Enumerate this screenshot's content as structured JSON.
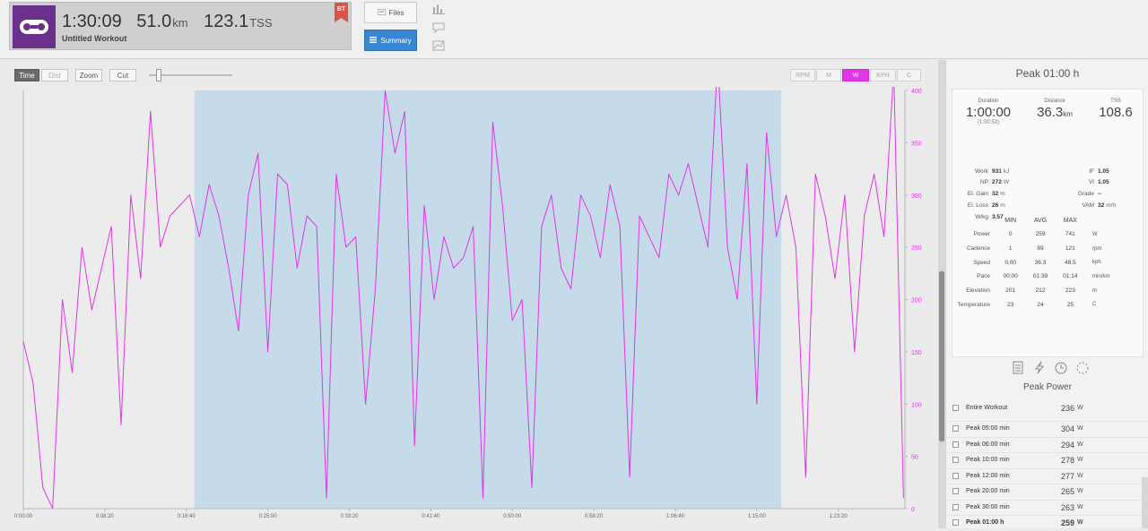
{
  "header": {
    "duration": "1:30:09",
    "distance": "51.0",
    "distance_unit": "km",
    "tss": "123.1",
    "tss_unit": "TSS",
    "title": "Untitled Workout",
    "badge": "BT",
    "files_label": "Files",
    "summary_label": "Summary"
  },
  "controls": {
    "time": "Time",
    "dist": "Dist",
    "zoom": "Zoom",
    "cut": "Cut",
    "metrics": [
      "RPM",
      "M",
      "W",
      "KPH",
      "C"
    ],
    "active_metric": "W"
  },
  "colors": {
    "accent": "#e135e8",
    "selection": "#c6dbea",
    "summary_button": "#3a86d0",
    "sport_icon": "#6b2f8c"
  },
  "chart_data": {
    "type": "line",
    "series_color": "#e135e8",
    "x_ticks": [
      "0:00:00",
      "0:08:20",
      "0:16:40",
      "0:25:00",
      "0:33:20",
      "0:41:40",
      "0:50:00",
      "0:58:20",
      "1:06:40",
      "1:15:00",
      "1:23:20"
    ],
    "y_ticks": [
      "0",
      "50",
      "100",
      "150",
      "200",
      "250",
      "300",
      "350",
      "400"
    ],
    "xlim_seconds": [
      0,
      5409
    ],
    "ylim": [
      0,
      400
    ],
    "selection_seconds": [
      1050,
      4650
    ],
    "series": [
      {
        "x_seconds": [
          0,
          60,
          120,
          180,
          240,
          300,
          360,
          420,
          480,
          540,
          600,
          660,
          720,
          780,
          840,
          900,
          960,
          1020,
          1080,
          1140,
          1200,
          1260,
          1320,
          1380,
          1440,
          1500,
          1560,
          1620,
          1680,
          1740,
          1800,
          1860,
          1920,
          1980,
          2040,
          2100,
          2160,
          2220,
          2280,
          2340,
          2400,
          2460,
          2520,
          2580,
          2640,
          2700,
          2760,
          2820,
          2880,
          2940,
          3000,
          3060,
          3120,
          3180,
          3240,
          3300,
          3360,
          3420,
          3480,
          3540,
          3600,
          3660,
          3720,
          3780,
          3840,
          3900,
          3960,
          4020,
          4080,
          4140,
          4200,
          4260,
          4320,
          4380,
          4440,
          4500,
          4560,
          4620,
          4680,
          4740,
          4800,
          4860,
          4920,
          4980,
          5040,
          5100,
          5160,
          5220,
          5280,
          5340,
          5400
        ],
        "values": [
          160,
          120,
          20,
          0,
          200,
          130,
          250,
          190,
          230,
          270,
          80,
          300,
          220,
          380,
          250,
          280,
          290,
          300,
          260,
          310,
          280,
          230,
          170,
          300,
          340,
          150,
          320,
          310,
          230,
          280,
          270,
          10,
          320,
          250,
          260,
          100,
          210,
          400,
          340,
          380,
          60,
          290,
          200,
          260,
          230,
          240,
          270,
          10,
          370,
          290,
          180,
          200,
          20,
          270,
          300,
          230,
          210,
          300,
          280,
          240,
          310,
          270,
          30,
          280,
          260,
          240,
          320,
          300,
          330,
          290,
          250,
          430,
          250,
          200,
          330,
          100,
          360,
          260,
          300,
          250,
          30,
          320,
          280,
          220,
          300,
          150,
          280,
          320,
          260,
          420,
          10
        ]
      }
    ]
  },
  "summary": {
    "title": "Peak 01:00 h",
    "duration_label": "Duration",
    "duration": "1:00:00",
    "duration_sub": "(1:00:53)",
    "distance_label": "Distance",
    "distance": "36.3",
    "distance_unit": "km",
    "tss_label": "TSS",
    "tss": "108.6",
    "work_label": "Work",
    "work": "931",
    "work_unit": "kJ",
    "np_label": "NP",
    "np": "272",
    "np_unit": "W",
    "el_gain_label": "El. Gain",
    "el_gain": "32",
    "el_gain_unit": "m",
    "el_loss_label": "El. Loss",
    "el_loss": "26",
    "el_loss_unit": "m",
    "wkg_label": "W/kg",
    "wkg": "3.57",
    "if_label": "IF",
    "if": "1.05",
    "vi_label": "VI",
    "vi": "1.05",
    "grade_label": "Grade",
    "grade": "--",
    "vam_label": "VAM",
    "vam": "32",
    "vam_unit": "m/h",
    "table_headers": [
      "MIN",
      "AVG",
      "MAX"
    ],
    "rows": [
      {
        "label": "Power",
        "min": "0",
        "avg": "259",
        "max": "741",
        "unit": "W"
      },
      {
        "label": "Cadence",
        "min": "1",
        "avg": "89",
        "max": "121",
        "unit": "rpm"
      },
      {
        "label": "Speed",
        "min": "0.00",
        "avg": "36.3",
        "max": "48.5",
        "unit": "kph"
      },
      {
        "label": "Pace",
        "min": "00:00",
        "avg": "01:39",
        "max": "01:14",
        "unit": "min/km"
      },
      {
        "label": "Elevation",
        "min": "201",
        "avg": "212",
        "max": "223",
        "unit": "m"
      },
      {
        "label": "Temperature",
        "min": "23",
        "avg": "24",
        "max": "25",
        "unit": "C"
      }
    ]
  },
  "peak_power": {
    "title": "Peak Power",
    "items": [
      {
        "label": "Entire Workout",
        "value": "236",
        "unit": "W",
        "active": false
      },
      {
        "label": "Peak 05:00 min",
        "value": "304",
        "unit": "W",
        "active": false
      },
      {
        "label": "Peak 06:00 min",
        "value": "294",
        "unit": "W",
        "active": false
      },
      {
        "label": "Peak 10:00 min",
        "value": "278",
        "unit": "W",
        "active": false
      },
      {
        "label": "Peak 12:00 min",
        "value": "277",
        "unit": "W",
        "active": false
      },
      {
        "label": "Peak 20:00 min",
        "value": "265",
        "unit": "W",
        "active": false
      },
      {
        "label": "Peak 30:00 min",
        "value": "263",
        "unit": "W",
        "active": false
      },
      {
        "label": "Peak 01:00 h",
        "value": "259",
        "unit": "W",
        "active": true
      }
    ]
  }
}
